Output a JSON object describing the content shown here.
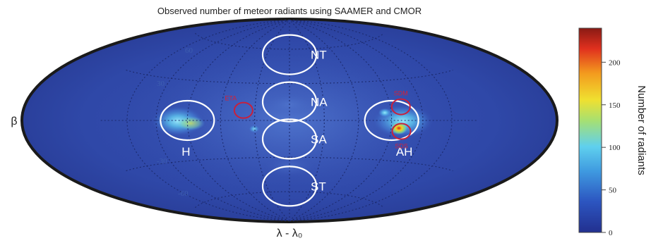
{
  "chart_data": {
    "type": "heatmap",
    "projection": "hammer-aitoff",
    "title": "Observed number of meteor radiants using SAAMER and CMOR",
    "xlabel": "λ - λ₀",
    "ylabel": "β",
    "grid": true,
    "grid_latitudes": [
      -60,
      -30,
      0,
      30,
      60
    ],
    "grid_labels": {
      "lat_60": "60",
      "lat_30": "30",
      "lat_m30": "-30",
      "lat_m60": "-60"
    },
    "colorbar": {
      "label": "Number of radiants",
      "ticks": [
        "0",
        "50",
        "100",
        "150",
        "200"
      ],
      "tick_values": [
        0,
        50,
        100,
        150,
        200
      ],
      "range": [
        0,
        240
      ],
      "colormap": "jet"
    },
    "source_regions": [
      {
        "name": "H",
        "center_lon": -90,
        "center_lat": 0
      },
      {
        "name": "NA",
        "center_lon": 0,
        "center_lat": 15
      },
      {
        "name": "NT",
        "center_lon": 0,
        "center_lat": 55
      },
      {
        "name": "SA",
        "center_lon": 0,
        "center_lat": -15
      },
      {
        "name": "ST",
        "center_lon": 0,
        "center_lat": -55
      },
      {
        "name": "AH",
        "center_lon": 90,
        "center_lat": 0
      }
    ],
    "showers": [
      {
        "name": "ETA",
        "lon": -40,
        "lat": 8
      },
      {
        "name": "SDM",
        "lon": 100,
        "lat": 10
      },
      {
        "name": "SDS",
        "lon": 100,
        "lat": -8
      }
    ]
  },
  "colors": {
    "map_background": "#2b3e9c",
    "map_edge": "#1a1a1a",
    "grid": "#1c2a6e",
    "region_circle": "#ffffff",
    "shower_circle": "#c8203c"
  }
}
